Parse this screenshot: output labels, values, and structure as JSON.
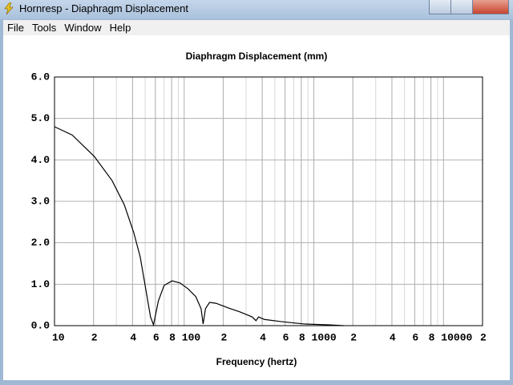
{
  "window": {
    "title": "Hornresp - Diaphragm Displacement",
    "menu": [
      "File",
      "Tools",
      "Window",
      "Help"
    ]
  },
  "chart_data": {
    "type": "line",
    "title": "Diaphragm Displacement (mm)",
    "xlabel": "Frequency (hertz)",
    "x": [
      10,
      13.7,
      20.3,
      27.8,
      34.5,
      40.8,
      45.8,
      50.5,
      55,
      58,
      63.3,
      70,
      80.6,
      93,
      107,
      123,
      135,
      140,
      146,
      157,
      176,
      218,
      270,
      335,
      358,
      375,
      415,
      550,
      840,
      1300,
      1700
    ],
    "values": [
      4.8,
      4.6,
      4.08,
      3.5,
      2.92,
      2.25,
      1.66,
      0.89,
      0.21,
      0.02,
      0.6,
      0.97,
      1.08,
      1.03,
      0.89,
      0.7,
      0.41,
      0.04,
      0.41,
      0.56,
      0.54,
      0.43,
      0.33,
      0.21,
      0.12,
      0.21,
      0.15,
      0.1,
      0.04,
      0.02,
      0
    ],
    "color": "#000000",
    "xscale": "log",
    "grid": true,
    "minor_grid": true,
    "xlim": [
      10,
      20000
    ],
    "ylim": [
      0,
      6
    ],
    "xticks": [
      10,
      {
        "value": 20,
        "label": "2"
      },
      {
        "value": 40,
        "label": "4"
      },
      {
        "value": 60,
        "label": "6"
      },
      {
        "value": 80,
        "label": "8"
      },
      100,
      {
        "value": 200,
        "label": "2"
      },
      {
        "value": 400,
        "label": "4"
      },
      {
        "value": 600,
        "label": "6"
      },
      {
        "value": 800,
        "label": "8"
      },
      1000,
      {
        "value": 2000,
        "label": "2"
      },
      {
        "value": 4000,
        "label": "4"
      },
      {
        "value": 6000,
        "label": "6"
      },
      {
        "value": 8000,
        "label": "8"
      },
      10000,
      {
        "value": 20000,
        "label": "2"
      }
    ],
    "yticks": [
      {
        "value": 0,
        "label": "0.0"
      },
      {
        "value": 1,
        "label": "1.0"
      },
      {
        "value": 2,
        "label": "2.0"
      },
      {
        "value": 3,
        "label": "3.0"
      },
      {
        "value": 4,
        "label": "4.0"
      },
      {
        "value": 5,
        "label": "5.0"
      },
      {
        "value": 6,
        "label": "6.0"
      }
    ]
  }
}
